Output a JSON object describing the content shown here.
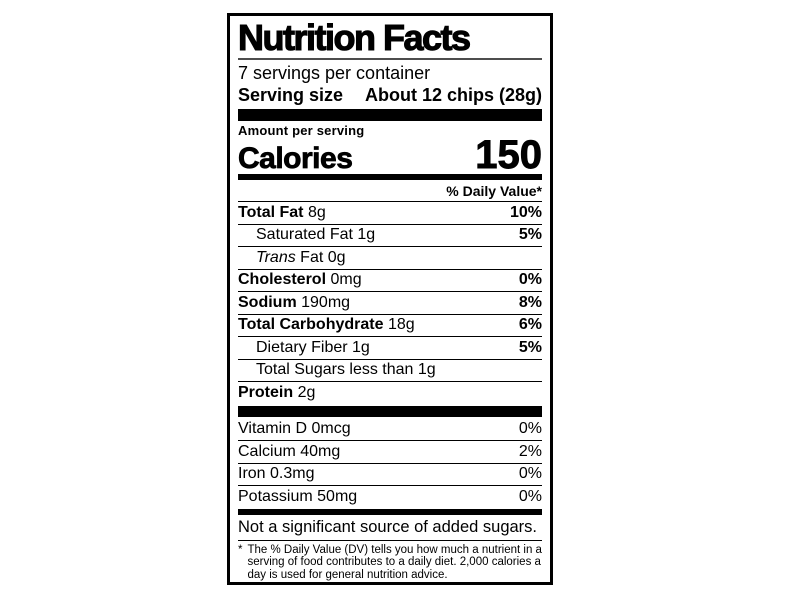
{
  "label": {
    "title": "Nutrition Facts",
    "servings_per_container": "7 servings per container",
    "serving_size_label": "Serving size",
    "serving_size_value": "About 12 chips (28g)",
    "amount_per_serving": "Amount per serving",
    "calories_label": "Calories",
    "calories_value": "150",
    "daily_value_header": "% Daily Value*",
    "nutrients": [
      {
        "name": "Total Fat",
        "amount": "8g",
        "dv": "10%"
      },
      {
        "name": "Saturated Fat",
        "amount": "1g",
        "dv": "5%"
      },
      {
        "name_italic": "Trans",
        "name": "Fat",
        "amount": "0g",
        "dv": ""
      },
      {
        "name": "Cholesterol",
        "amount": "0mg",
        "dv": "0%"
      },
      {
        "name": "Sodium",
        "amount": "190mg",
        "dv": "8%"
      },
      {
        "name": "Total Carbohydrate",
        "amount": "18g",
        "dv": "6%"
      },
      {
        "name": "Dietary Fiber",
        "amount": "1g",
        "dv": "5%"
      },
      {
        "name": "Total Sugars",
        "amount": "less than 1g",
        "dv": ""
      },
      {
        "name": "Protein",
        "amount": "2g",
        "dv": ""
      }
    ],
    "vitamins": [
      {
        "name": "Vitamin D",
        "amount": "0mcg",
        "dv": "0%"
      },
      {
        "name": "Calcium",
        "amount": "40mg",
        "dv": "2%"
      },
      {
        "name": "Iron",
        "amount": "0.3mg",
        "dv": "0%"
      },
      {
        "name": "Potassium",
        "amount": "50mg",
        "dv": "0%"
      }
    ],
    "disclaimer": "Not a significant source of added sugars.",
    "footnote_marker": "*",
    "footnote_text": "The % Daily Value (DV) tells you how much a nutrient in a serving of food contributes to a daily diet. 2,000 calories a day is used for general nutrition advice.",
    "colors": {
      "ink": "#000000",
      "paper": "#ffffff"
    }
  }
}
